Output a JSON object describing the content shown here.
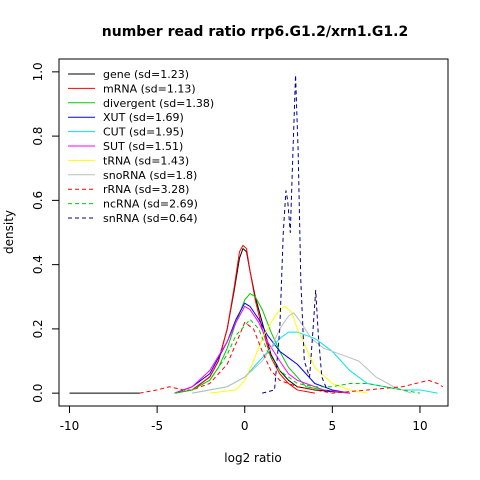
{
  "chart_data": {
    "type": "line",
    "title": "number read ratio rrp6.G1.2/xrn1.G1.2",
    "xlabel": "log2 ratio",
    "ylabel": "density",
    "xlim": [
      -10.6,
      11.6
    ],
    "ylim": [
      -0.04,
      1.04
    ],
    "xticks": [
      -10,
      -5,
      0,
      5,
      10
    ],
    "yticks": [
      0.0,
      0.2,
      0.4,
      0.6,
      0.8,
      1.0
    ],
    "xtick_labels": [
      "-10",
      "-5",
      "0",
      "5",
      "10"
    ],
    "ytick_labels": [
      "0.0",
      "0.2",
      "0.4",
      "0.6",
      "0.8",
      "1.0"
    ],
    "legend_position": "top-left",
    "grid": false,
    "series": [
      {
        "name": "gene (sd=1.23)",
        "color": "#000000",
        "dash": "solid",
        "points": [
          [
            -4,
            0.0
          ],
          [
            -3,
            0.01
          ],
          [
            -2,
            0.05
          ],
          [
            -1.5,
            0.1
          ],
          [
            -1,
            0.2
          ],
          [
            -0.6,
            0.32
          ],
          [
            -0.3,
            0.42
          ],
          [
            -0.1,
            0.45
          ],
          [
            0.1,
            0.44
          ],
          [
            0.3,
            0.38
          ],
          [
            0.6,
            0.3
          ],
          [
            1,
            0.22
          ],
          [
            1.5,
            0.12
          ],
          [
            2,
            0.07
          ],
          [
            2.5,
            0.04
          ],
          [
            3,
            0.02
          ],
          [
            4,
            0.01
          ],
          [
            6,
            0.0
          ]
        ]
      },
      {
        "name": "mRNA (sd=1.13)",
        "color": "#ff0000",
        "dash": "solid",
        "points": [
          [
            -4,
            0.0
          ],
          [
            -3,
            0.01
          ],
          [
            -2,
            0.05
          ],
          [
            -1.5,
            0.1
          ],
          [
            -1,
            0.2
          ],
          [
            -0.6,
            0.33
          ],
          [
            -0.3,
            0.44
          ],
          [
            -0.1,
            0.46
          ],
          [
            0.1,
            0.45
          ],
          [
            0.3,
            0.38
          ],
          [
            0.6,
            0.29
          ],
          [
            1,
            0.2
          ],
          [
            1.5,
            0.11
          ],
          [
            2,
            0.06
          ],
          [
            2.5,
            0.03
          ],
          [
            3,
            0.01
          ],
          [
            4,
            0.0
          ]
        ]
      },
      {
        "name": "divergent (sd=1.38)",
        "color": "#00cd00",
        "dash": "solid",
        "points": [
          [
            -4,
            0.0
          ],
          [
            -3,
            0.01
          ],
          [
            -2,
            0.04
          ],
          [
            -1.5,
            0.08
          ],
          [
            -1,
            0.14
          ],
          [
            -0.5,
            0.22
          ],
          [
            0,
            0.29
          ],
          [
            0.3,
            0.31
          ],
          [
            0.6,
            0.3
          ],
          [
            1,
            0.26
          ],
          [
            1.5,
            0.19
          ],
          [
            2,
            0.13
          ],
          [
            2.5,
            0.08
          ],
          [
            3,
            0.05
          ],
          [
            3.5,
            0.02
          ],
          [
            4.5,
            0.01
          ],
          [
            6,
            0.0
          ]
        ]
      },
      {
        "name": "XUT (sd=1.69)",
        "color": "#0000ff",
        "dash": "solid",
        "points": [
          [
            -4,
            0.0
          ],
          [
            -3,
            0.02
          ],
          [
            -2,
            0.06
          ],
          [
            -1,
            0.16
          ],
          [
            -0.5,
            0.23
          ],
          [
            0,
            0.28
          ],
          [
            0.3,
            0.27
          ],
          [
            0.8,
            0.23
          ],
          [
            1.3,
            0.18
          ],
          [
            2,
            0.13
          ],
          [
            2.5,
            0.11
          ],
          [
            3,
            0.09
          ],
          [
            3.5,
            0.06
          ],
          [
            4,
            0.03
          ],
          [
            5,
            0.01
          ],
          [
            6,
            0.0
          ]
        ]
      },
      {
        "name": "CUT (sd=1.95)",
        "color": "#00e5ee",
        "dash": "solid",
        "points": [
          [
            -3,
            0.0
          ],
          [
            -1,
            0.02
          ],
          [
            0,
            0.05
          ],
          [
            0.5,
            0.08
          ],
          [
            1,
            0.11
          ],
          [
            1.5,
            0.14
          ],
          [
            2,
            0.17
          ],
          [
            2.5,
            0.19
          ],
          [
            3,
            0.19
          ],
          [
            3.5,
            0.18
          ],
          [
            4,
            0.17
          ],
          [
            4.5,
            0.15
          ],
          [
            5,
            0.13
          ],
          [
            5.5,
            0.1
          ],
          [
            6,
            0.07
          ],
          [
            7,
            0.03
          ],
          [
            8,
            0.02
          ],
          [
            9,
            0.01
          ],
          [
            10,
            0.01
          ],
          [
            11,
            0.0
          ]
        ]
      },
      {
        "name": "SUT (sd=1.51)",
        "color": "#ff00ff",
        "dash": "solid",
        "points": [
          [
            -4,
            0.0
          ],
          [
            -3,
            0.02
          ],
          [
            -2,
            0.07
          ],
          [
            -1,
            0.16
          ],
          [
            -0.5,
            0.22
          ],
          [
            0,
            0.27
          ],
          [
            0.3,
            0.26
          ],
          [
            0.8,
            0.22
          ],
          [
            1.3,
            0.16
          ],
          [
            2,
            0.1
          ],
          [
            2.5,
            0.06
          ],
          [
            3,
            0.04
          ],
          [
            3.5,
            0.03
          ],
          [
            4.5,
            0.01
          ],
          [
            6,
            0.0
          ]
        ]
      },
      {
        "name": "tRNA (sd=1.43)",
        "color": "#ffff00",
        "dash": "solid",
        "points": [
          [
            -2,
            0.0
          ],
          [
            -0.5,
            0.01
          ],
          [
            0,
            0.04
          ],
          [
            0.5,
            0.1
          ],
          [
            1,
            0.17
          ],
          [
            1.5,
            0.22
          ],
          [
            2,
            0.26
          ],
          [
            2.3,
            0.27
          ],
          [
            2.7,
            0.25
          ],
          [
            3,
            0.2
          ],
          [
            3.5,
            0.14
          ],
          [
            4,
            0.08
          ],
          [
            5,
            0.03
          ],
          [
            6,
            0.01
          ],
          [
            7,
            0.0
          ]
        ]
      },
      {
        "name": "snoRNA (sd=1.8)",
        "color": "#bebebe",
        "dash": "solid",
        "points": [
          [
            -3,
            0.0
          ],
          [
            -1,
            0.02
          ],
          [
            0,
            0.05
          ],
          [
            1,
            0.1
          ],
          [
            1.5,
            0.14
          ],
          [
            2,
            0.2
          ],
          [
            2.5,
            0.24
          ],
          [
            2.8,
            0.25
          ],
          [
            3.2,
            0.22
          ],
          [
            3.8,
            0.17
          ],
          [
            4.5,
            0.14
          ],
          [
            5.5,
            0.12
          ],
          [
            6.5,
            0.1
          ],
          [
            7.5,
            0.05
          ],
          [
            8.5,
            0.02
          ],
          [
            9.5,
            0.0
          ]
        ]
      },
      {
        "name": "rRNA (sd=3.28)",
        "color": "#ff0000",
        "dash": "dashed",
        "points": [
          [
            -6,
            0.0
          ],
          [
            -5,
            0.01
          ],
          [
            -4.3,
            0.02
          ],
          [
            -3.5,
            0.01
          ],
          [
            -3,
            0.01
          ],
          [
            -2,
            0.03
          ],
          [
            -1,
            0.09
          ],
          [
            -0.3,
            0.18
          ],
          [
            0,
            0.22
          ],
          [
            0.5,
            0.2
          ],
          [
            1,
            0.13
          ],
          [
            1.5,
            0.07
          ],
          [
            2,
            0.04
          ],
          [
            3,
            0.02
          ],
          [
            4,
            0.01
          ],
          [
            5,
            0.0
          ],
          [
            7,
            0.01
          ],
          [
            9,
            0.02
          ],
          [
            10.5,
            0.04
          ],
          [
            11,
            0.03
          ],
          [
            11.3,
            0.02
          ]
        ]
      },
      {
        "name": "ncRNA (sd=2.69)",
        "color": "#00cd00",
        "dash": "dashed",
        "points": [
          [
            -4,
            0.0
          ],
          [
            -3,
            0.01
          ],
          [
            -2,
            0.04
          ],
          [
            -1,
            0.12
          ],
          [
            -0.5,
            0.18
          ],
          [
            0,
            0.21
          ],
          [
            0.3,
            0.23
          ],
          [
            0.8,
            0.2
          ],
          [
            1.3,
            0.13
          ],
          [
            2,
            0.07
          ],
          [
            3,
            0.03
          ],
          [
            4,
            0.02
          ],
          [
            5,
            0.02
          ],
          [
            6,
            0.03
          ],
          [
            7,
            0.03
          ],
          [
            8,
            0.02
          ],
          [
            9,
            0.01
          ],
          [
            10,
            0.0
          ]
        ]
      },
      {
        "name": "snRNA (sd=0.64)",
        "color": "#00008b",
        "dash": "dashed",
        "points": [
          [
            1,
            0.0
          ],
          [
            1.7,
            0.01
          ],
          [
            2,
            0.2
          ],
          [
            2.2,
            0.5
          ],
          [
            2.35,
            0.63
          ],
          [
            2.45,
            0.6
          ],
          [
            2.6,
            0.5
          ],
          [
            2.75,
            0.75
          ],
          [
            2.9,
            0.99
          ],
          [
            3.05,
            0.75
          ],
          [
            3.2,
            0.35
          ],
          [
            3.4,
            0.1
          ],
          [
            3.7,
            0.05
          ],
          [
            3.9,
            0.2
          ],
          [
            4.05,
            0.32
          ],
          [
            4.2,
            0.18
          ],
          [
            4.4,
            0.05
          ],
          [
            4.7,
            0.01
          ],
          [
            5,
            0.0
          ]
        ]
      }
    ]
  }
}
